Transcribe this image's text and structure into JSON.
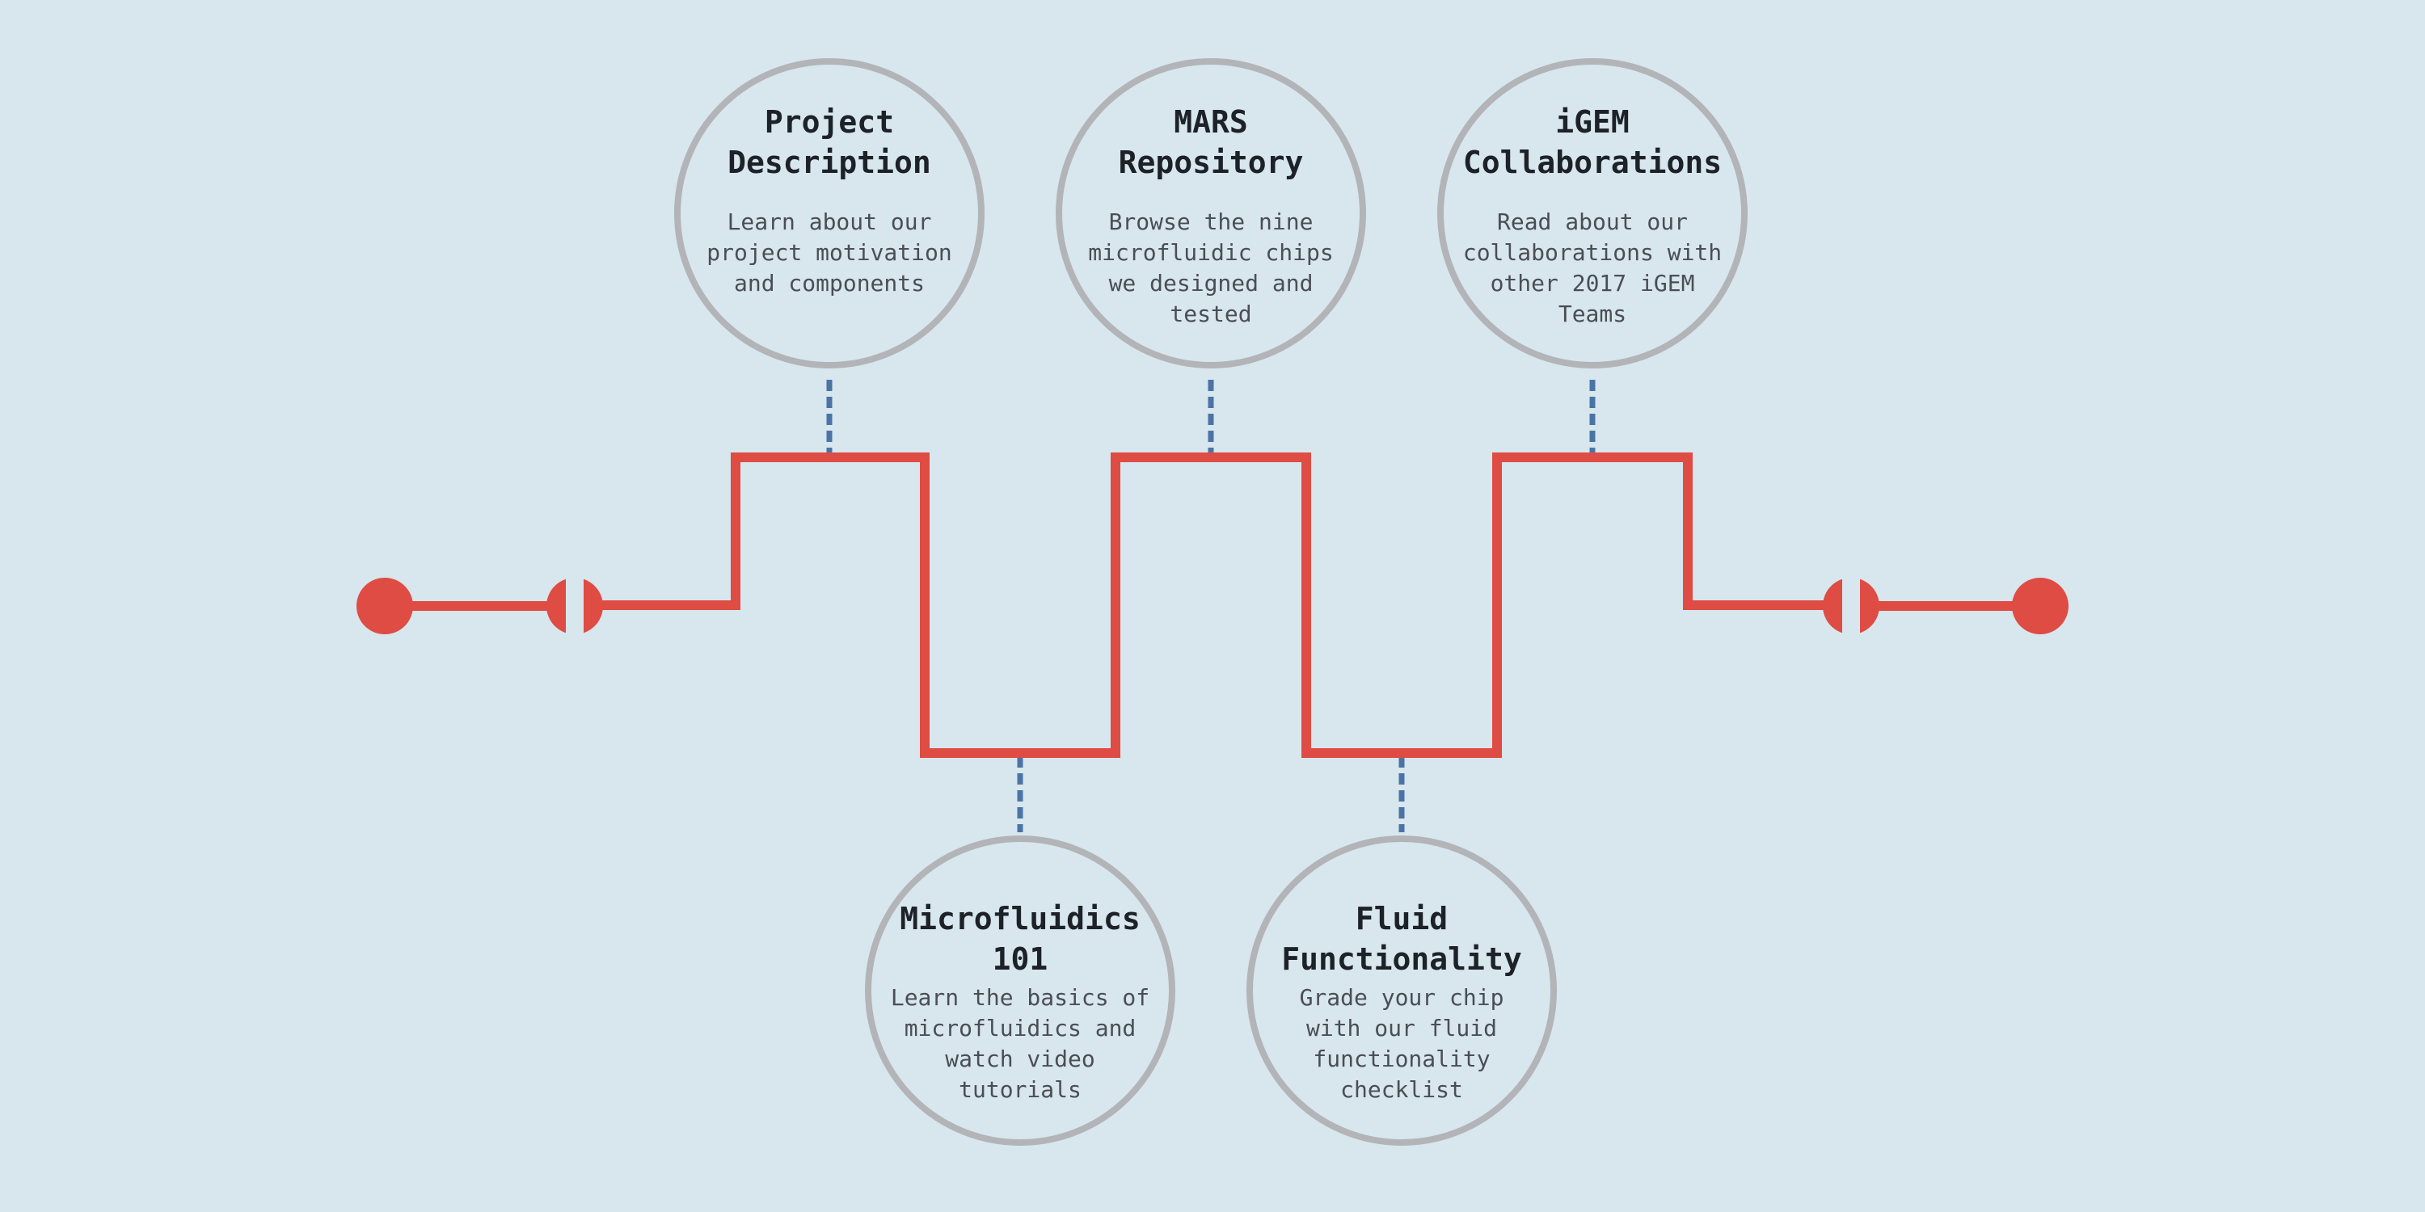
{
  "colors": {
    "background": "#d8e6ed",
    "channel": "#de4c44",
    "connector": "#4a74a6",
    "node_border": "#b2b4b8",
    "title": "#1d2228",
    "description": "#4a4e54"
  },
  "nodes": [
    {
      "id": "project-description",
      "title": "Project\nDescription",
      "description": "Learn about our\nproject motivation\nand components"
    },
    {
      "id": "mars-repository",
      "title": "MARS\nRepository",
      "description": "Browse the nine\nmicrofluidic chips\nwe designed and\ntested"
    },
    {
      "id": "igem-collaborations",
      "title": "iGEM\nCollaborations",
      "description": "Read about our\ncollaborations with\nother 2017 iGEM\nTeams"
    },
    {
      "id": "microfluidics-101",
      "title": "Microfluidics\n101",
      "description": "Learn the basics of\nmicrofluidics and\nwatch video\ntutorials"
    },
    {
      "id": "fluid-functionality",
      "title": "Fluid\nFunctionality",
      "description": "Grade your chip\nwith our fluid\nfunctionality\nchecklist"
    }
  ]
}
